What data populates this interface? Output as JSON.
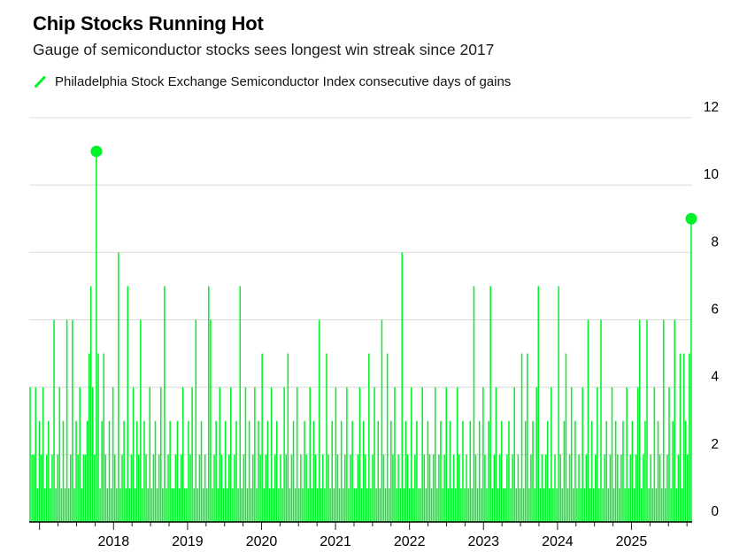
{
  "header": {
    "title": "Chip Stocks Running Hot",
    "subtitle": "Gauge of semiconductor stocks sees longest win streak since 2017"
  },
  "legend": {
    "label": "Philadelphia Stock Exchange Semiconductor Index consecutive days of gains",
    "marker": "green-slash-line"
  },
  "colors": {
    "series": "#00F228",
    "gridline": "#DBDBDB",
    "axis_line": "#000000",
    "tick": "#222222",
    "label_text": "#000000",
    "background": "#FFFFFF"
  },
  "chart_data": {
    "type": "bar",
    "title": "Chip Stocks Running Hot",
    "series_name": "Philadelphia Stock Exchange Semiconductor Index consecutive days of gains",
    "unit": "consecutive days of gains",
    "x_start_year": 2016.86,
    "x_end_year": 2025.82,
    "x_tick_years_major": [
      2017,
      2018,
      2019,
      2020,
      2021,
      2022,
      2023,
      2024,
      2025
    ],
    "x_tick_labels": [
      "2018",
      "2019",
      "2020",
      "2021",
      "2022",
      "2023",
      "2024",
      "2025"
    ],
    "x_minor_ticks_per_year": 4,
    "y_ticks": [
      0,
      2,
      4,
      6,
      8,
      10,
      12
    ],
    "ylim": [
      0,
      12
    ],
    "grid": true,
    "y_axis_side": "right",
    "values": [
      4,
      2,
      2,
      4,
      1,
      3,
      2,
      4,
      1,
      2,
      3,
      1,
      2,
      6,
      1,
      2,
      4,
      1,
      3,
      1,
      6,
      1,
      2,
      6,
      1,
      3,
      2,
      4,
      1,
      2,
      2,
      3,
      5,
      7,
      4,
      2,
      11,
      5,
      1,
      3,
      5,
      2,
      1,
      3,
      1,
      4,
      2,
      1,
      8,
      1,
      2,
      3,
      1,
      7,
      1,
      2,
      4,
      1,
      3,
      2,
      6,
      1,
      3,
      2,
      1,
      4,
      1,
      2,
      3,
      1,
      2,
      4,
      1,
      7,
      1,
      2,
      3,
      1,
      1,
      2,
      3,
      1,
      2,
      4,
      1,
      1,
      3,
      2,
      4,
      1,
      6,
      1,
      2,
      3,
      1,
      2,
      1,
      7,
      6,
      1,
      2,
      3,
      1,
      4,
      2,
      1,
      3,
      1,
      2,
      4,
      1,
      2,
      3,
      1,
      7,
      1,
      2,
      4,
      1,
      3,
      1,
      2,
      4,
      1,
      3,
      2,
      5,
      1,
      2,
      3,
      1,
      4,
      1,
      2,
      3,
      1,
      2,
      1,
      4,
      2,
      5,
      1,
      2,
      3,
      1,
      4,
      1,
      2,
      1,
      3,
      2,
      1,
      4,
      1,
      3,
      2,
      1,
      6,
      1,
      2,
      1,
      5,
      2,
      1,
      3,
      1,
      4,
      2,
      1,
      3,
      1,
      2,
      4,
      1,
      2,
      3,
      1,
      1,
      2,
      4,
      1,
      3,
      2,
      1,
      5,
      1,
      2,
      4,
      1,
      3,
      1,
      6,
      2,
      1,
      5,
      1,
      3,
      2,
      4,
      1,
      2,
      1,
      8,
      1,
      3,
      2,
      1,
      4,
      1,
      2,
      3,
      1,
      1,
      4,
      2,
      1,
      3,
      2,
      1,
      2,
      4,
      1,
      2,
      3,
      1,
      2,
      4,
      1,
      3,
      1,
      2,
      1,
      4,
      2,
      1,
      3,
      1,
      2,
      1,
      3,
      1,
      7,
      2,
      1,
      3,
      1,
      4,
      2,
      1,
      3,
      7,
      1,
      2,
      4,
      1,
      2,
      3,
      1,
      1,
      2,
      3,
      1,
      2,
      4,
      1,
      2,
      1,
      5,
      1,
      3,
      5,
      1,
      2,
      3,
      1,
      4,
      7,
      1,
      2,
      1,
      2,
      3,
      1,
      4,
      1,
      2,
      1,
      7,
      2,
      1,
      3,
      5,
      1,
      2,
      4,
      1,
      3,
      1,
      2,
      1,
      4,
      1,
      2,
      6,
      1,
      3,
      1,
      2,
      4,
      1,
      6,
      1,
      2,
      3,
      1,
      2,
      4,
      1,
      3,
      2,
      1,
      2,
      3,
      1,
      4,
      1,
      2,
      3,
      1,
      2,
      4,
      6,
      1,
      2,
      3,
      6,
      1,
      2,
      1,
      4,
      1,
      3,
      2,
      1,
      6,
      1,
      2,
      4,
      1,
      3,
      6,
      1,
      2,
      5,
      1,
      5,
      3,
      2,
      5,
      9
    ],
    "markers": [
      {
        "index": 36,
        "value": 11
      },
      {
        "index": 359,
        "value": 9
      }
    ]
  }
}
